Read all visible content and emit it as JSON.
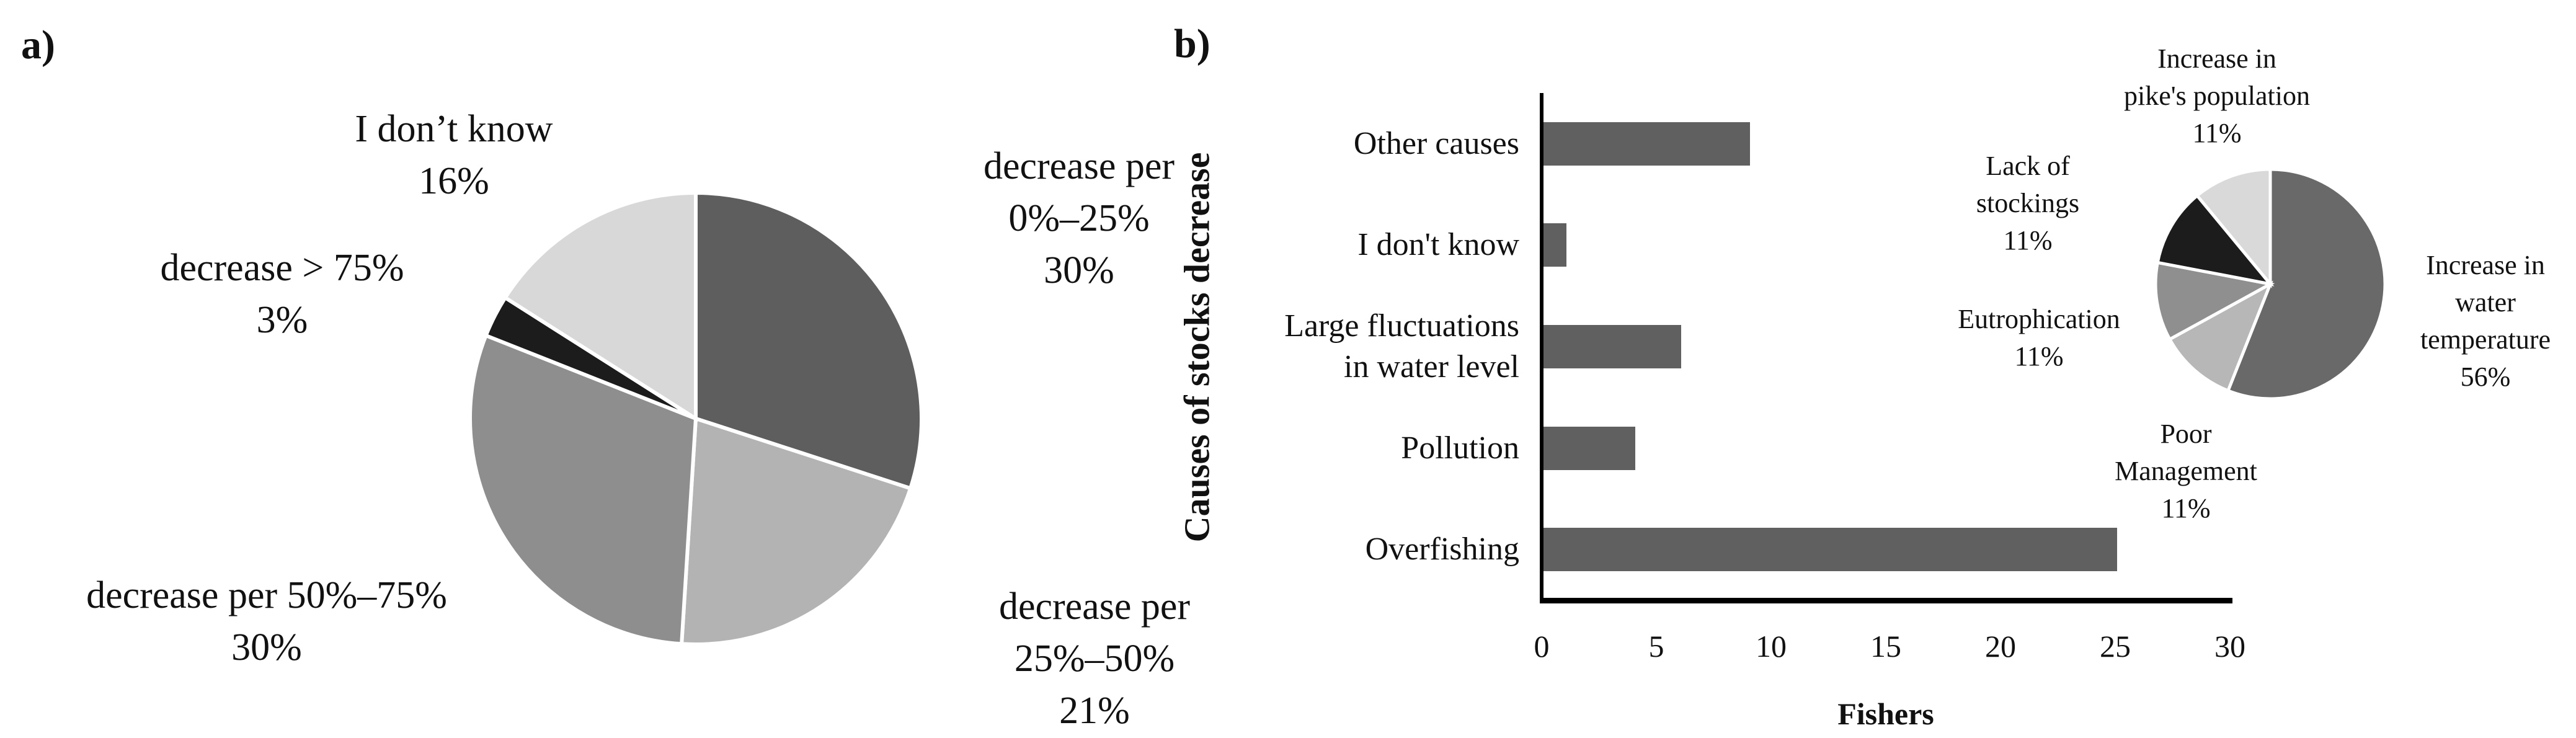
{
  "figure": {
    "panel_a_tag": "a)",
    "panel_b_tag": "b)"
  },
  "chart_data": [
    {
      "id": "pie_a",
      "type": "pie",
      "legend_position": "none",
      "start_angle_deg": 0,
      "clockwise": true,
      "slices": [
        {
          "label": "decrease per 0%–25%",
          "pct": 30,
          "color": "#5e5e5e",
          "label_lines": [
            "decrease per",
            "0%–25%",
            "30%"
          ]
        },
        {
          "label": "decrease per 25%–50%",
          "pct": 21,
          "color": "#b3b3b3",
          "label_lines": [
            "decrease per",
            "25%–50%",
            "21%"
          ]
        },
        {
          "label": "decrease per 50%–75%",
          "pct": 30,
          "color": "#8e8e8e",
          "label_lines": [
            "decrease per 50%–75%",
            "30%"
          ]
        },
        {
          "label": "decrease > 75%",
          "pct": 3,
          "color": "#1c1c1c",
          "label_lines": [
            "decrease > 75%",
            "3%"
          ]
        },
        {
          "label": "I don’t know",
          "pct": 16,
          "color": "#d8d8d8",
          "label_lines": [
            "I don’t know",
            "16%"
          ]
        }
      ]
    },
    {
      "id": "bar_b",
      "type": "bar",
      "orientation": "horizontal",
      "categories": [
        "Other causes",
        "I don't know",
        "Large fluctuations in water level",
        "Pollution",
        "Overfishing"
      ],
      "category_lines": [
        [
          "Other causes"
        ],
        [
          "I don't know"
        ],
        [
          "Large fluctuations",
          "in water level"
        ],
        [
          "Pollution"
        ],
        [
          "Overfishing"
        ]
      ],
      "values": [
        9,
        1,
        6,
        4,
        25
      ],
      "xlabel": "Fishers",
      "ylabel": "Causes of stocks decrease",
      "xlim": [
        0,
        30
      ],
      "xticks": [
        "0",
        "5",
        "10",
        "15",
        "20",
        "25",
        "30"
      ],
      "grid": false,
      "bar_color": "#606060"
    },
    {
      "id": "pie_b",
      "type": "pie",
      "legend_position": "none",
      "start_angle_deg": 0,
      "clockwise": true,
      "slices": [
        {
          "label": "Increase in water temperature",
          "pct": 56,
          "color": "#696969",
          "label_lines": [
            "Increase in",
            "water",
            "temperature",
            "56%"
          ]
        },
        {
          "label": "Poor Management",
          "pct": 11,
          "color": "#b7b7b7",
          "label_lines": [
            "Poor",
            "Management",
            "11%"
          ]
        },
        {
          "label": "Eutrophication",
          "pct": 11,
          "color": "#8f8f8f",
          "label_lines": [
            "Eutrophication",
            "11%"
          ]
        },
        {
          "label": "Lack of stockings",
          "pct": 11,
          "color": "#1c1c1c",
          "label_lines": [
            "Lack of",
            "stockings",
            "11%"
          ]
        },
        {
          "label": "Increase in pike's population",
          "pct": 11,
          "color": "#d9d9d9",
          "label_lines": [
            "Increase in",
            "pike's population",
            "11%"
          ]
        }
      ]
    }
  ],
  "layout_note": "two-panel survey figure: pie chart of perceived stock decrease magnitude (a) and horizontal bar chart of causes with inset pie (b)"
}
